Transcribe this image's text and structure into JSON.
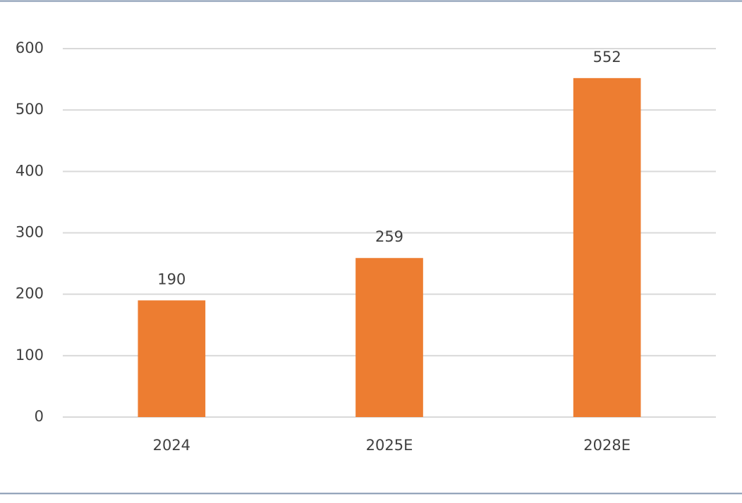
{
  "chart_data": {
    "type": "bar",
    "categories": [
      "2024",
      "2025E",
      "2028E"
    ],
    "values": [
      190,
      259,
      552
    ],
    "color": "#ed7d31",
    "ylim": [
      0,
      600
    ],
    "yticks": [
      0,
      100,
      200,
      300,
      400,
      500,
      600
    ],
    "grid": true
  }
}
